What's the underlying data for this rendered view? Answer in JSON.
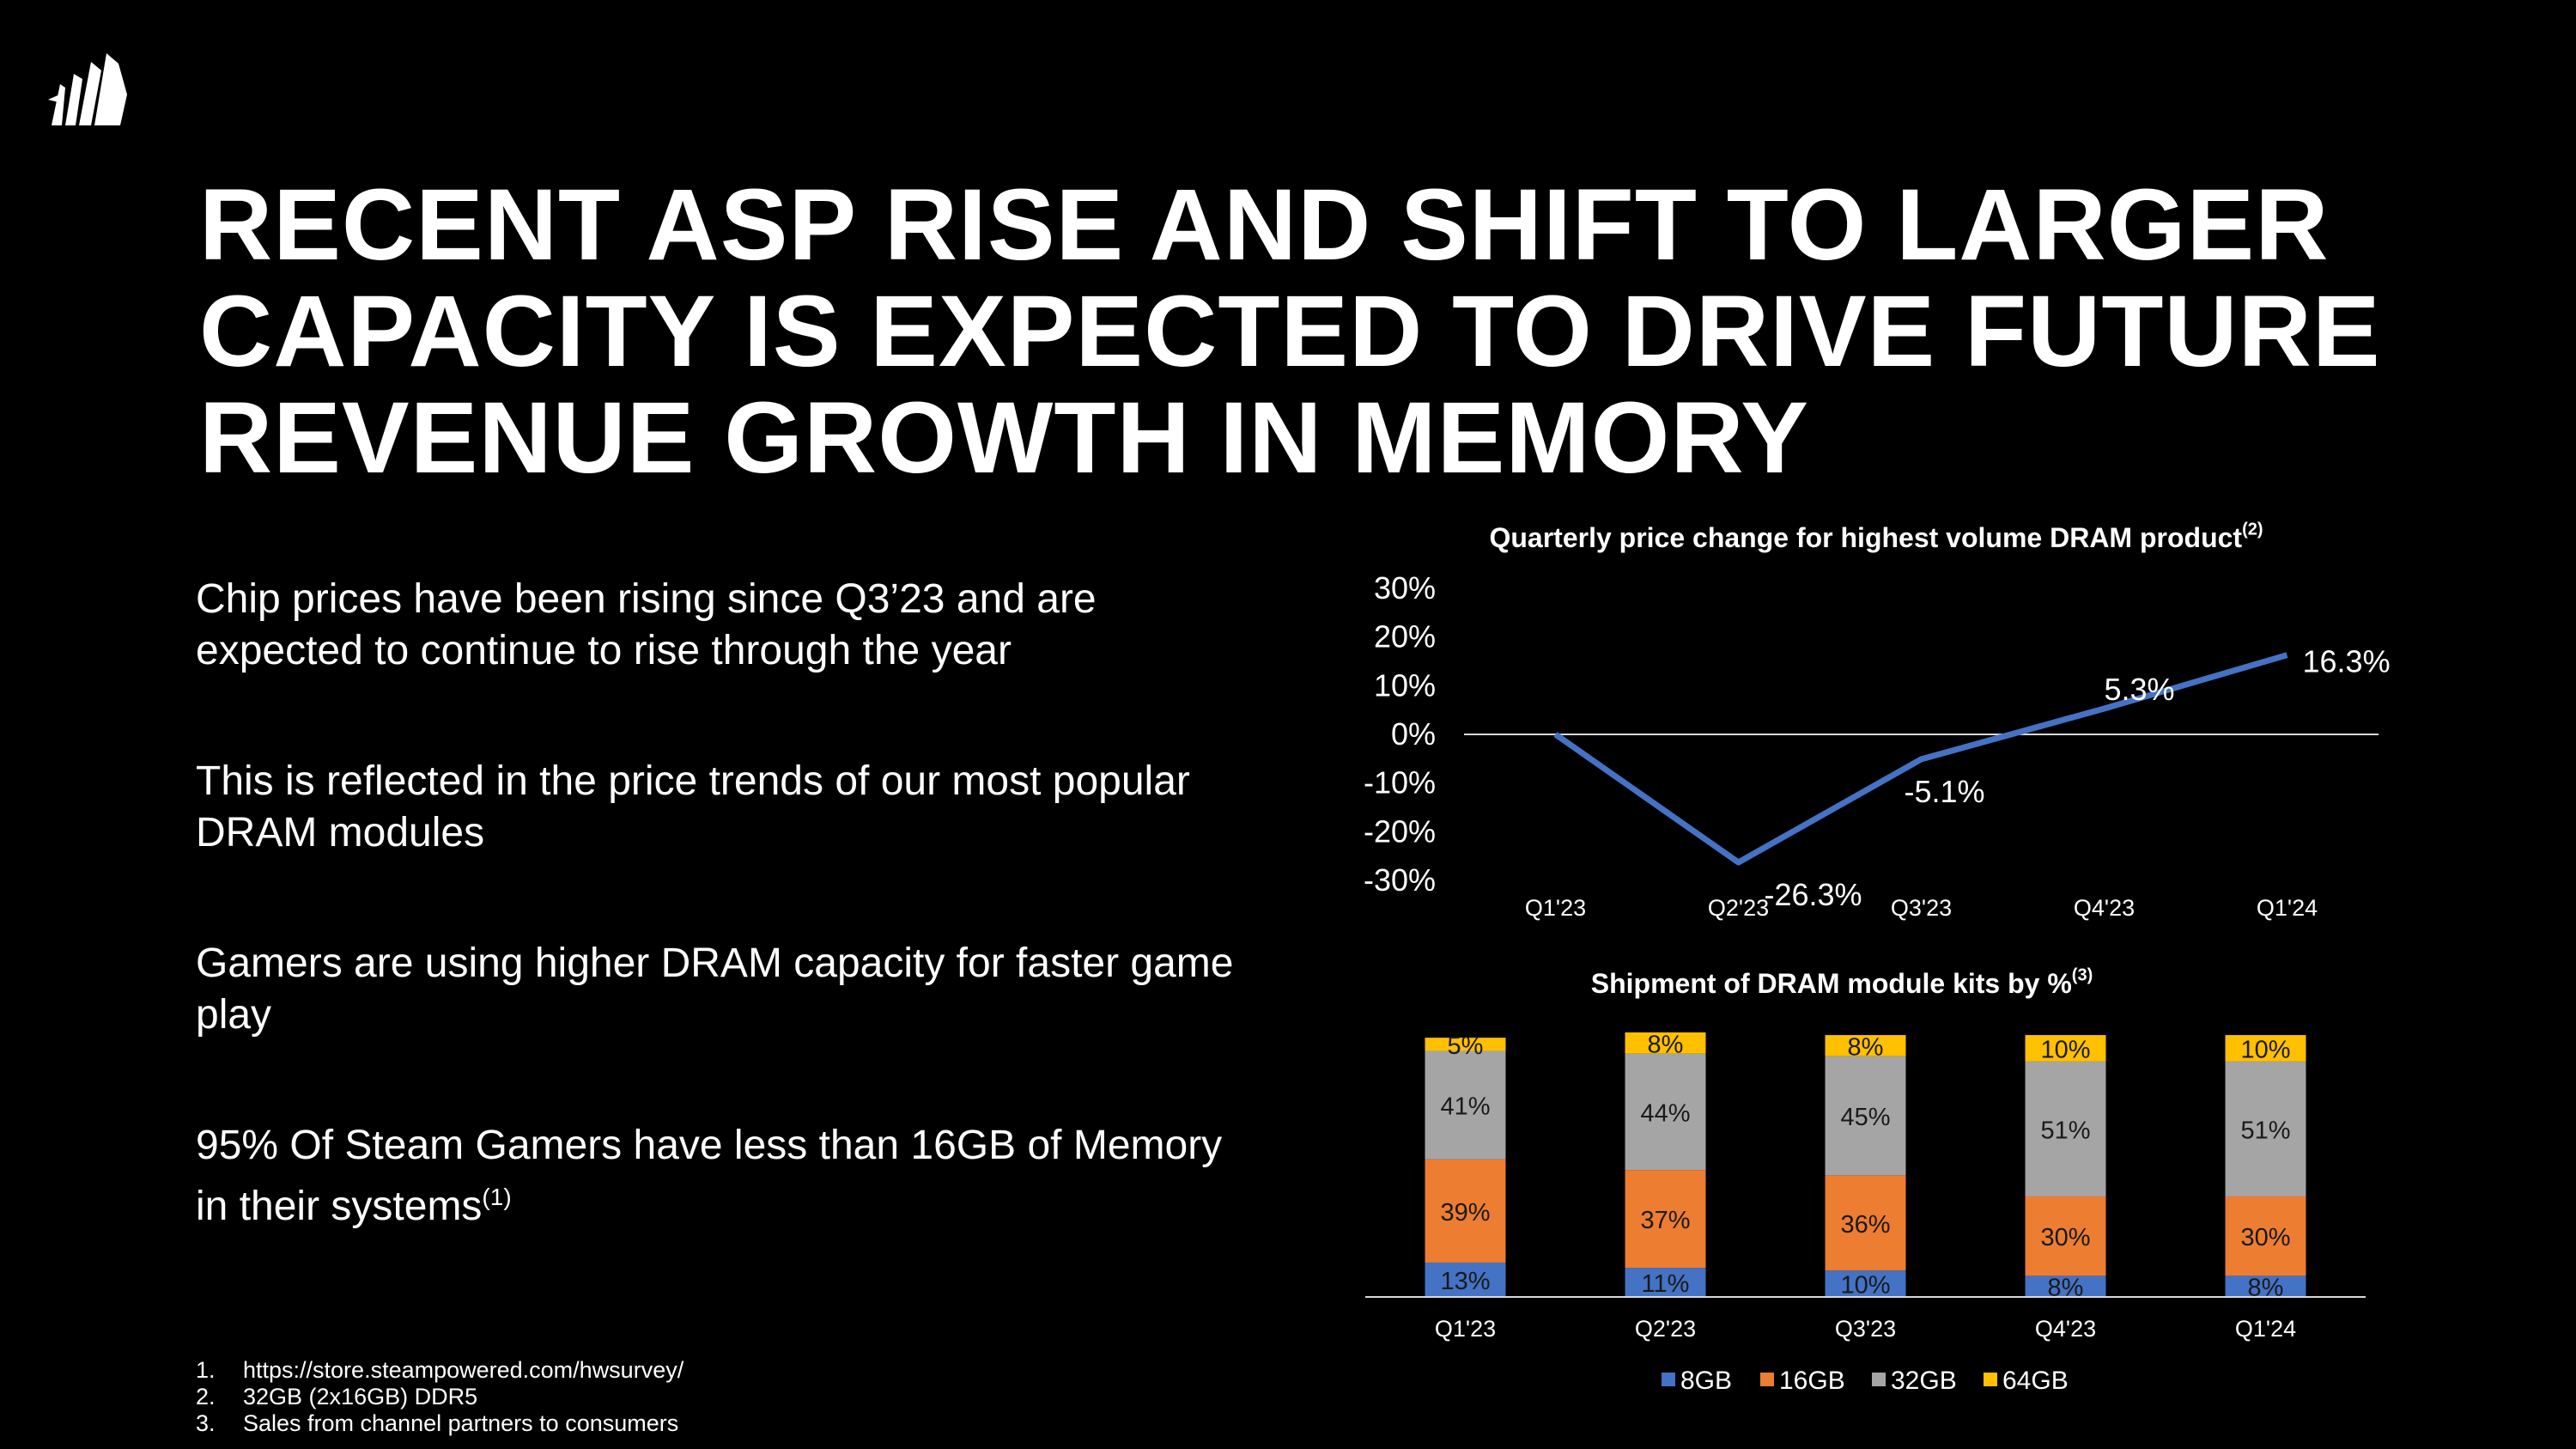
{
  "slide": {
    "logo": "sail-logo-icon",
    "title_lines": [
      "RECENT ASP RISE AND SHIFT TO LARGER",
      "CAPACITY IS EXPECTED TO DRIVE FUTURE",
      "REVENUE GROWTH IN MEMORY"
    ],
    "bullets": [
      {
        "text": "Chip prices have been rising since Q3’23 and are expected to continue to rise through the year",
        "sup": ""
      },
      {
        "text": "This is reflected in the price trends of our most popular DRAM modules",
        "sup": ""
      },
      {
        "text": "Gamers are using higher DRAM capacity for faster game play",
        "sup": ""
      },
      {
        "text": "95% Of Steam Gamers have less than 16GB of Memory in their systems",
        "sup": "(1)"
      }
    ],
    "footnotes": [
      {
        "num": "1.",
        "text": "https://store.steampowered.com/hwsurvey/"
      },
      {
        "num": "2.",
        "text": "32GB (2x16GB) DDR5"
      },
      {
        "num": "3.",
        "text": "Sales from channel partners to consumers"
      }
    ]
  },
  "chart_data": [
    {
      "type": "line",
      "title": "Quarterly price change for highest volume DRAM product",
      "title_sup": "(2)",
      "categories": [
        "Q1'23",
        "Q2'23",
        "Q3'23",
        "Q4'23",
        "Q1'24"
      ],
      "values": [
        0,
        -26.3,
        -5.1,
        5.3,
        16.3
      ],
      "data_labels": [
        "",
        "-26.3%",
        "-5.1%",
        "5.3%",
        "16.3%"
      ],
      "yticks": [
        "30%",
        "20%",
        "10%",
        "0%",
        "-10%",
        "-20%",
        "-30%"
      ],
      "ylim": [
        -30,
        30
      ],
      "color": "#4472C4",
      "xlabel": "",
      "ylabel": ""
    },
    {
      "type": "bar",
      "stacked": true,
      "title": "Shipment of DRAM module kits by %",
      "title_sup": "(3)",
      "categories": [
        "Q1'23",
        "Q2'23",
        "Q3'23",
        "Q4'23",
        "Q1'24"
      ],
      "series": [
        {
          "name": "8GB",
          "color": "#4472C4",
          "values": [
            13,
            11,
            10,
            8,
            8
          ],
          "labels": [
            "13%",
            "11%",
            "10%",
            "8%",
            "8%"
          ]
        },
        {
          "name": "16GB",
          "color": "#ED7D31",
          "values": [
            39,
            37,
            36,
            30,
            30
          ],
          "labels": [
            "39%",
            "37%",
            "36%",
            "30%",
            "30%"
          ]
        },
        {
          "name": "32GB",
          "color": "#A5A5A5",
          "values": [
            41,
            44,
            45,
            51,
            51
          ],
          "labels": [
            "41%",
            "44%",
            "45%",
            "51%",
            "51%"
          ]
        },
        {
          "name": "64GB",
          "color": "#FFC000",
          "values": [
            5,
            8,
            8,
            10,
            10
          ],
          "labels": [
            "5%",
            "8%",
            "8%",
            "10%",
            "10%"
          ]
        }
      ],
      "ylim": [
        0,
        100
      ],
      "legend_position": "bottom"
    }
  ]
}
